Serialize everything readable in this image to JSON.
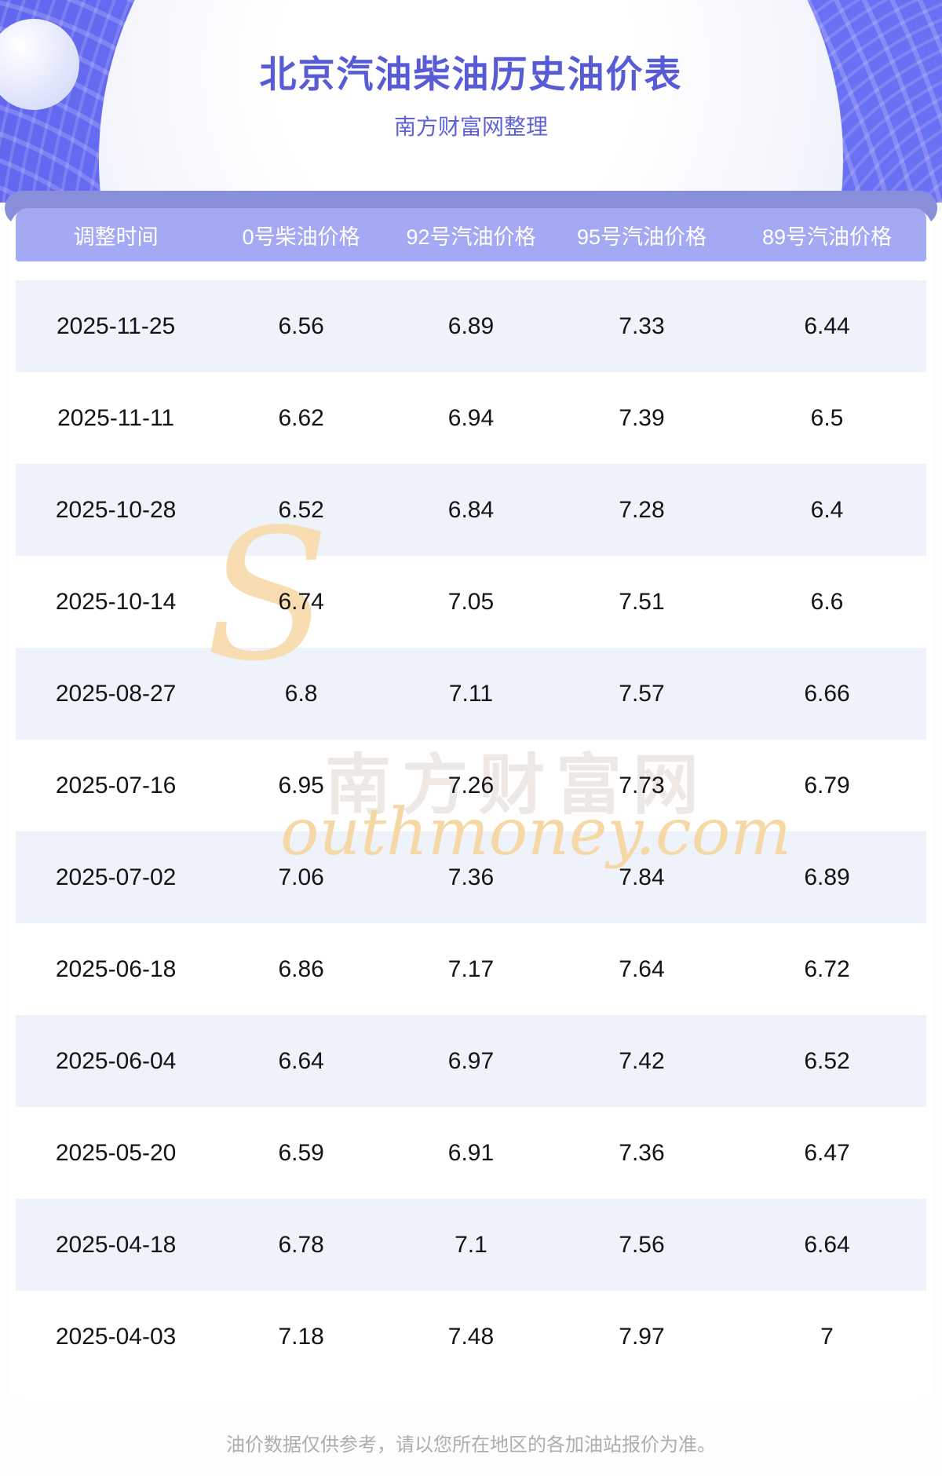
{
  "header": {
    "title": "北京汽油柴油历史油价表",
    "subtitle": "南方财富网整理"
  },
  "chart_data": {
    "type": "table",
    "title": "北京汽油柴油历史油价表",
    "columns": [
      "调整时间",
      "0号柴油价格",
      "92号汽油价格",
      "95号汽油价格",
      "89号汽油价格"
    ],
    "rows": [
      [
        "2025-11-25",
        "6.56",
        "6.89",
        "7.33",
        "6.44"
      ],
      [
        "2025-11-11",
        "6.62",
        "6.94",
        "7.39",
        "6.5"
      ],
      [
        "2025-10-28",
        "6.52",
        "6.84",
        "7.28",
        "6.4"
      ],
      [
        "2025-10-14",
        "6.74",
        "7.05",
        "7.51",
        "6.6"
      ],
      [
        "2025-08-27",
        "6.8",
        "7.11",
        "7.57",
        "6.66"
      ],
      [
        "2025-07-16",
        "6.95",
        "7.26",
        "7.73",
        "6.79"
      ],
      [
        "2025-07-02",
        "7.06",
        "7.36",
        "7.84",
        "6.89"
      ],
      [
        "2025-06-18",
        "6.86",
        "7.17",
        "7.64",
        "6.72"
      ],
      [
        "2025-06-04",
        "6.64",
        "6.97",
        "7.42",
        "6.52"
      ],
      [
        "2025-05-20",
        "6.59",
        "6.91",
        "7.36",
        "6.47"
      ],
      [
        "2025-04-18",
        "6.78",
        "7.1",
        "7.56",
        "6.64"
      ],
      [
        "2025-04-03",
        "7.18",
        "7.48",
        "7.97",
        "7"
      ]
    ]
  },
  "watermark": {
    "swoosh": "S",
    "chinese": "南方财富网",
    "english": "outhmoney.com"
  },
  "footer": {
    "note": "油价数据仅供参考，请以您所在地区的各加油站报价为准。"
  },
  "colors": {
    "banner_blue": "#6a70f3",
    "strip_purple": "#898edb",
    "header_purple": "#a4a9f4",
    "row_alt_blue": "#edf2fb",
    "title_blue": "#575cd6",
    "subtitle_blue": "#5d62d8",
    "text_dark": "#141414",
    "footer_gray": "#adadad",
    "watermark_orange": "#f6d8a6",
    "watermark_gray": "#ede8e4"
  }
}
